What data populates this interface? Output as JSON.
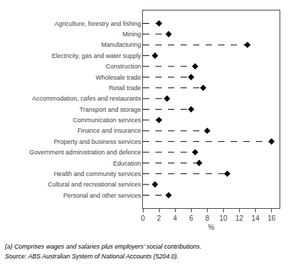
{
  "chart_data": {
    "type": "lollipop",
    "orientation": "horizontal",
    "categories": [
      "Agriculture, forestry and fishing",
      "Mining",
      "Manufacturing",
      "Electricity, gas and water supply",
      "Construction",
      "Wholesale trade",
      "Retail trade",
      "Accommodation, cafes and restaurants",
      "Transport and storage",
      "Communication services",
      "Finance and insurance",
      "Property and business services",
      "Government administration and defence",
      "Education",
      "Health and community services",
      "Cultural and recreational services",
      "Personal and other services"
    ],
    "values": [
      2.0,
      3.2,
      13.0,
      1.5,
      6.5,
      6.0,
      7.5,
      3.0,
      6.0,
      2.0,
      8.0,
      16.0,
      6.5,
      7.0,
      10.5,
      1.5,
      3.2
    ],
    "xlim": [
      0,
      17
    ],
    "xticks": [
      0,
      2,
      4,
      6,
      8,
      10,
      12,
      14,
      16
    ],
    "xlabel": "%",
    "color": "#000000",
    "marker": "diamond",
    "line_style": "dashed",
    "grid": false,
    "annotations": [
      "(a) Comprises wages and salaries plus employers’ social contributions.",
      "Source: ABS Australian System of National Accounts (5204.0)."
    ]
  }
}
